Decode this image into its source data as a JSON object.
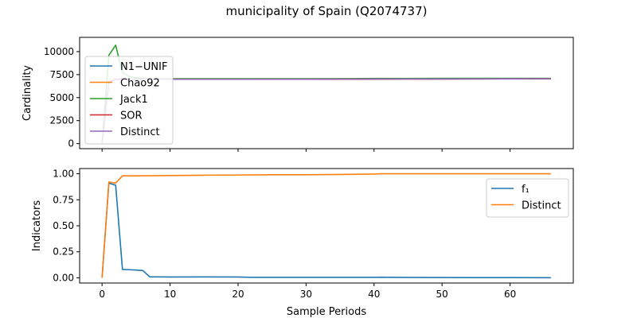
{
  "figure": {
    "title": "municipality of Spain (Q2074737)"
  },
  "chart_data": [
    {
      "type": "line",
      "panel": "top",
      "ylabel": "Cardinality",
      "xlabel": "",
      "xlim": [
        -3.3,
        69.3
      ],
      "ylim": [
        -550,
        11550
      ],
      "xticks": [
        0,
        10,
        20,
        30,
        40,
        50,
        60
      ],
      "show_xticklabels": false,
      "yticks": [
        0,
        2500,
        5000,
        7500,
        10000
      ],
      "ytick_labels": [
        "0",
        "2500",
        "5000",
        "7500",
        "10000"
      ],
      "legend_position": "upper left",
      "grid": false,
      "series": [
        {
          "name": "N1−UNIF",
          "color": "#1f77b4",
          "points": [
            [
              0,
              0
            ],
            [
              1,
              6600
            ],
            [
              2,
              7000
            ],
            [
              3,
              7000
            ],
            [
              5,
              7000
            ],
            [
              10,
              7000
            ],
            [
              20,
              7000
            ],
            [
              30,
              7000
            ],
            [
              36,
              7010
            ],
            [
              40,
              7020
            ],
            [
              50,
              7030
            ],
            [
              60,
              7040
            ],
            [
              66,
              7050
            ]
          ]
        },
        {
          "name": "Chao92",
          "color": "#ff7f0e",
          "points": [
            [
              0,
              0
            ],
            [
              1,
              6700
            ],
            [
              2,
              7000
            ],
            [
              3,
              7000
            ],
            [
              5,
              7000
            ],
            [
              10,
              7000
            ],
            [
              20,
              7000
            ],
            [
              30,
              7000
            ],
            [
              36,
              7010
            ],
            [
              40,
              7020
            ],
            [
              50,
              7030
            ],
            [
              60,
              7040
            ],
            [
              66,
              7050
            ]
          ]
        },
        {
          "name": "Jack1",
          "color": "#2ca02c",
          "points": [
            [
              0,
              0
            ],
            [
              1,
              9600
            ],
            [
              2,
              10700
            ],
            [
              3,
              7700
            ],
            [
              4,
              7300
            ],
            [
              5,
              7150
            ],
            [
              6,
              7100
            ],
            [
              7,
              7050
            ],
            [
              10,
              7050
            ],
            [
              20,
              7050
            ],
            [
              30,
              7050
            ],
            [
              36,
              7060
            ],
            [
              40,
              7080
            ],
            [
              50,
              7090
            ],
            [
              60,
              7100
            ],
            [
              66,
              7100
            ]
          ]
        },
        {
          "name": "SOR",
          "color": "#d62728",
          "points": [
            [
              0,
              0
            ],
            [
              1,
              6700
            ],
            [
              2,
              7000
            ],
            [
              3,
              7000
            ],
            [
              5,
              7000
            ],
            [
              10,
              7000
            ],
            [
              20,
              7000
            ],
            [
              30,
              7000
            ],
            [
              36,
              7010
            ],
            [
              40,
              7020
            ],
            [
              50,
              7030
            ],
            [
              60,
              7040
            ],
            [
              66,
              7050
            ]
          ]
        },
        {
          "name": "Distinct",
          "color": "#9467bd",
          "points": [
            [
              0,
              0
            ],
            [
              1,
              6650
            ],
            [
              2,
              6950
            ],
            [
              3,
              6980
            ],
            [
              5,
              6990
            ],
            [
              10,
              6990
            ],
            [
              20,
              6990
            ],
            [
              30,
              7000
            ],
            [
              36,
              7010
            ],
            [
              40,
              7020
            ],
            [
              50,
              7030
            ],
            [
              60,
              7040
            ],
            [
              66,
              7050
            ]
          ]
        }
      ]
    },
    {
      "type": "line",
      "panel": "bottom",
      "ylabel": "Indicators",
      "xlabel": "Sample Periods",
      "xlim": [
        -3.3,
        69.3
      ],
      "ylim": [
        -0.05,
        1.05
      ],
      "xticks": [
        0,
        10,
        20,
        30,
        40,
        50,
        60
      ],
      "xtick_labels": [
        "0",
        "10",
        "20",
        "30",
        "40",
        "50",
        "60"
      ],
      "yticks": [
        0,
        0.25,
        0.5,
        0.75,
        1.0
      ],
      "ytick_labels": [
        "0.00",
        "0.25",
        "0.50",
        "0.75",
        "1.00"
      ],
      "legend_position": "upper right",
      "grid": false,
      "series": [
        {
          "name": "f₁",
          "color": "#1f77b4",
          "points": [
            [
              0,
              0
            ],
            [
              1,
              0.91
            ],
            [
              2,
              0.89
            ],
            [
              3,
              0.08
            ],
            [
              4,
              0.078
            ],
            [
              5,
              0.075
            ],
            [
              6,
              0.07
            ],
            [
              7,
              0.01
            ],
            [
              10,
              0.008
            ],
            [
              15,
              0.009
            ],
            [
              20,
              0.008
            ],
            [
              22,
              0.005
            ],
            [
              30,
              0.005
            ],
            [
              40,
              0.005
            ],
            [
              41,
              0.006
            ],
            [
              45,
              0.004
            ],
            [
              50,
              0.003
            ],
            [
              55,
              0.002
            ],
            [
              60,
              0.002
            ],
            [
              66,
              0.001
            ]
          ]
        },
        {
          "name": "Distinct",
          "color": "#ff7f0e",
          "points": [
            [
              0,
              0
            ],
            [
              1,
              0.92
            ],
            [
              2,
              0.91
            ],
            [
              3,
              0.98
            ],
            [
              5,
              0.98
            ],
            [
              10,
              0.983
            ],
            [
              15,
              0.986
            ],
            [
              20,
              0.988
            ],
            [
              25,
              0.99
            ],
            [
              30,
              0.99
            ],
            [
              35,
              0.993
            ],
            [
              40,
              0.997
            ],
            [
              41,
              1.0
            ],
            [
              45,
              1.0
            ],
            [
              50,
              1.0
            ],
            [
              55,
              1.0
            ],
            [
              60,
              1.0
            ],
            [
              66,
              1.0
            ]
          ]
        }
      ]
    }
  ]
}
